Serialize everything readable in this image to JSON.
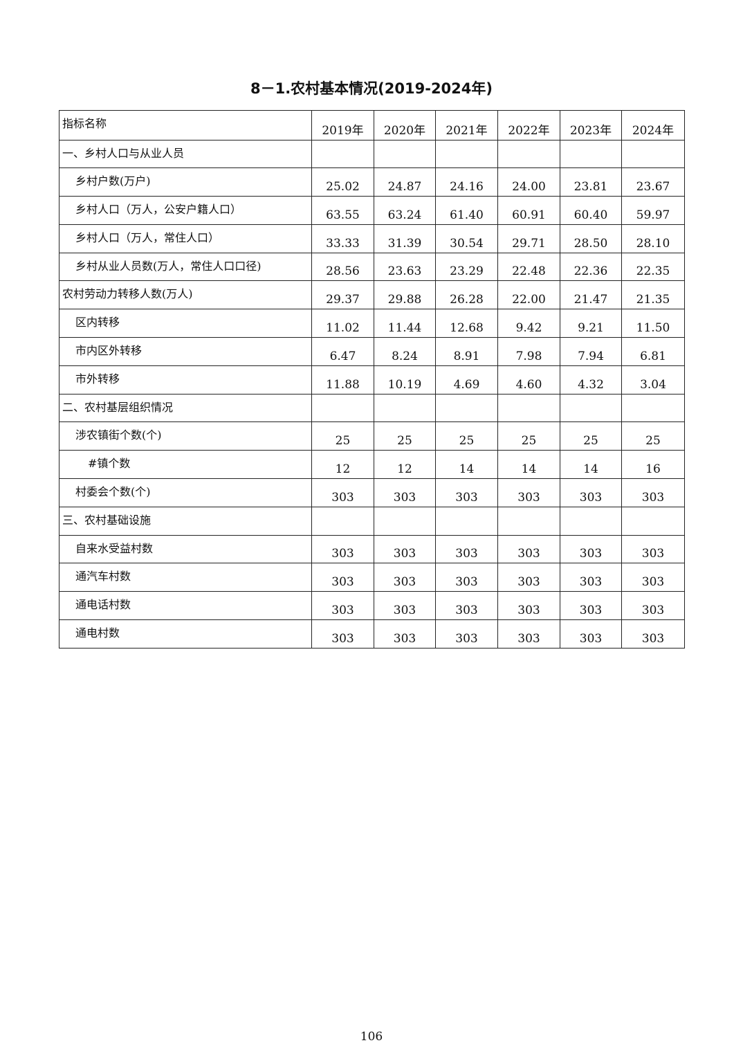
{
  "title": "8－1.农村基本情况(2019-2024年)",
  "table": {
    "header": [
      "指标名称",
      "2019年",
      "2020年",
      "2021年",
      "2022年",
      "2023年",
      "2024年"
    ],
    "rows": [
      {
        "label": "一、乡村人口与从业人员",
        "indent": 0,
        "values": [
          "",
          "",
          "",
          "",
          "",
          ""
        ]
      },
      {
        "label": "乡村户数(万户)",
        "indent": 1,
        "values": [
          "25.02",
          "24.87",
          "24.16",
          "24.00",
          "23.81",
          "23.67"
        ]
      },
      {
        "label": "乡村人口（万人，公安户籍人口）",
        "indent": 1,
        "values": [
          "63.55",
          "63.24",
          "61.40",
          "60.91",
          "60.40",
          "59.97"
        ]
      },
      {
        "label": "乡村人口（万人，常住人口）",
        "indent": 1,
        "values": [
          "33.33",
          "31.39",
          "30.54",
          "29.71",
          "28.50",
          "28.10"
        ]
      },
      {
        "label": "乡村从业人员数(万人，常住人口口径)",
        "indent": 1,
        "values": [
          "28.56",
          "23.63",
          "23.29",
          "22.48",
          "22.36",
          "22.35"
        ]
      },
      {
        "label": "农村劳动力转移人数(万人)",
        "indent": 0,
        "values": [
          "29.37",
          "29.88",
          "26.28",
          "22.00",
          "21.47",
          "21.35"
        ]
      },
      {
        "label": "区内转移",
        "indent": 1,
        "values": [
          "11.02",
          "11.44",
          "12.68",
          "9.42",
          "9.21",
          "11.50"
        ]
      },
      {
        "label": "市内区外转移",
        "indent": 1,
        "values": [
          "6.47",
          "8.24",
          "8.91",
          "7.98",
          "7.94",
          "6.81"
        ]
      },
      {
        "label": "市外转移",
        "indent": 1,
        "values": [
          "11.88",
          "10.19",
          "4.69",
          "4.60",
          "4.32",
          "3.04"
        ]
      },
      {
        "label": "二、农村基层组织情况",
        "indent": 0,
        "values": [
          "",
          "",
          "",
          "",
          "",
          ""
        ]
      },
      {
        "label": "涉农镇街个数(个)",
        "indent": 1,
        "values": [
          "25",
          "25",
          "25",
          "25",
          "25",
          "25"
        ]
      },
      {
        "label": "#镇个数",
        "indent": 2,
        "values": [
          "12",
          "12",
          "14",
          "14",
          "14",
          "16"
        ]
      },
      {
        "label": "村委会个数(个)",
        "indent": 1,
        "values": [
          "303",
          "303",
          "303",
          "303",
          "303",
          "303"
        ]
      },
      {
        "label": "三、农村基础设施",
        "indent": 0,
        "values": [
          "",
          "",
          "",
          "",
          "",
          ""
        ]
      },
      {
        "label": "自来水受益村数",
        "indent": 1,
        "values": [
          "303",
          "303",
          "303",
          "303",
          "303",
          "303"
        ]
      },
      {
        "label": "通汽车村数",
        "indent": 1,
        "values": [
          "303",
          "303",
          "303",
          "303",
          "303",
          "303"
        ]
      },
      {
        "label": "通电话村数",
        "indent": 1,
        "values": [
          "303",
          "303",
          "303",
          "303",
          "303",
          "303"
        ]
      },
      {
        "label": "通电村数",
        "indent": 1,
        "values": [
          "303",
          "303",
          "303",
          "303",
          "303",
          "303"
        ]
      }
    ]
  },
  "page_number": "106"
}
